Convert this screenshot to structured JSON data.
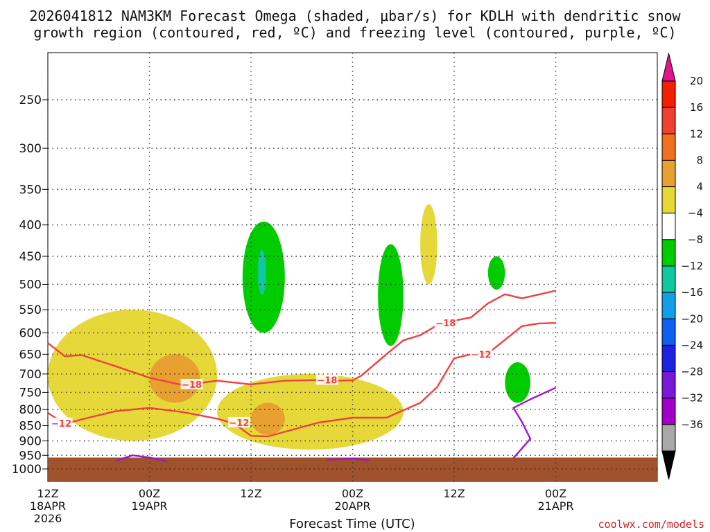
{
  "chart_data": {
    "type": "time-height cross section",
    "title_line1": "2026041812 NAM3KM Forecast Omega (shaded, μbar/s) for KDLH with dendritic snow",
    "title_line2": "growth region (contoured, red, ºC) and freezing level (contoured, purple, ºC)",
    "xlabel": "Forecast Time (UTC)",
    "credit": "coolwx.com/models",
    "x_hours_range": [
      0,
      36
    ],
    "x_ticks": [
      {
        "hour": 0,
        "line1": "12Z",
        "line2": "18APR",
        "line3": "2026"
      },
      {
        "hour": 6,
        "line1": "00Z",
        "line2": "19APR",
        "line3": ""
      },
      {
        "hour": 12,
        "line1": "12Z",
        "line2": "",
        "line3": ""
      },
      {
        "hour": 18,
        "line1": "00Z",
        "line2": "20APR",
        "line3": ""
      },
      {
        "hour": 24,
        "line1": "12Z",
        "line2": "",
        "line3": ""
      },
      {
        "hour": 30,
        "line1": "00Z",
        "line2": "21APR",
        "line3": ""
      }
    ],
    "y_ticks_hPa": [
      250,
      300,
      350,
      400,
      450,
      500,
      550,
      600,
      650,
      700,
      750,
      800,
      850,
      900,
      950,
      1000
    ],
    "y_range_hPa": [
      200,
      1000
    ],
    "colorbar": {
      "label_values": [
        "20",
        "16",
        "12",
        "8",
        "4",
        "−4",
        "−8",
        "−12",
        "−16",
        "−20",
        "−24",
        "−28",
        "−32",
        "−36"
      ],
      "colors": [
        "#f02000",
        "#f04030",
        "#f07020",
        "#e8a030",
        "#e6d838",
        "#ffffff",
        "#00cc00",
        "#10c8a0",
        "#10a0e8",
        "#1060f0",
        "#2020e0",
        "#7a18d8",
        "#a000c8",
        "#a8a8a8"
      ],
      "top_arrow_color": "#e0158a",
      "bottom_arrow_color": "#000000"
    },
    "shading_colors": {
      "weak_rising": "#e6d838",
      "moderate_rising": "#e8a030",
      "weak_sinking": "#00cc00",
      "moderate_sinking": "#10c8a0",
      "terrain": "#a0522d"
    },
    "omega_regions": [
      {
        "sign": "rising",
        "level": "4 to 8",
        "hour_range": [
          0,
          10
        ],
        "hPa_range": [
          550,
          900
        ]
      },
      {
        "sign": "rising",
        "level": "8 to 12",
        "hour_range": [
          6,
          9
        ],
        "hPa_range": [
          650,
          780
        ]
      },
      {
        "sign": "rising",
        "level": "4 to 8",
        "hour_range": [
          10,
          21
        ],
        "hPa_range": [
          700,
          930
        ]
      },
      {
        "sign": "rising",
        "level": "8 to 12",
        "hour_range": [
          12,
          14
        ],
        "hPa_range": [
          780,
          880
        ]
      },
      {
        "sign": "rising",
        "level": "4 to 8",
        "hour_range": [
          22,
          23
        ],
        "hPa_range": [
          370,
          500
        ]
      },
      {
        "sign": "sinking",
        "level": "-4 to -8",
        "hour_range": [
          11.5,
          14
        ],
        "hPa_range": [
          395,
          600
        ]
      },
      {
        "sign": "sinking",
        "level": "-8 to -12",
        "hour_range": [
          12.4,
          12.9
        ],
        "hPa_range": [
          440,
          520
        ]
      },
      {
        "sign": "sinking",
        "level": "-4 to -8",
        "hour_range": [
          19.5,
          21
        ],
        "hPa_range": [
          430,
          630
        ]
      },
      {
        "sign": "sinking",
        "level": "-4 to -8",
        "hour_range": [
          26,
          27
        ],
        "hPa_range": [
          450,
          510
        ]
      },
      {
        "sign": "sinking",
        "level": "-4 to -8",
        "hour_range": [
          27,
          28.5
        ],
        "hPa_range": [
          670,
          780
        ]
      }
    ],
    "dgz_contours": [
      {
        "label": "−18",
        "points": [
          [
            0,
            623
          ],
          [
            1,
            655
          ],
          [
            2,
            652
          ],
          [
            4,
            680
          ],
          [
            6,
            710
          ],
          [
            8,
            730
          ],
          [
            10,
            718
          ],
          [
            12,
            728
          ],
          [
            14,
            718
          ],
          [
            16,
            716
          ],
          [
            17,
            718
          ],
          [
            18,
            717
          ],
          [
            18.5,
            705
          ],
          [
            20,
            650
          ],
          [
            21,
            617
          ],
          [
            22,
            605
          ],
          [
            23,
            583
          ],
          [
            24,
            573
          ],
          [
            25,
            566
          ],
          [
            26,
            537
          ],
          [
            27,
            519
          ],
          [
            28,
            527
          ],
          [
            30,
            512
          ]
        ]
      },
      {
        "label": "−12",
        "points": [
          [
            0,
            810
          ],
          [
            1,
            845
          ],
          [
            2,
            830
          ],
          [
            4,
            805
          ],
          [
            6,
            795
          ],
          [
            8,
            808
          ],
          [
            10,
            828
          ],
          [
            11,
            843
          ],
          [
            12,
            883
          ],
          [
            13,
            885
          ],
          [
            16,
            840
          ],
          [
            18,
            825
          ],
          [
            20,
            825
          ],
          [
            22,
            780
          ],
          [
            23,
            735
          ],
          [
            24,
            660
          ],
          [
            25,
            650
          ],
          [
            26,
            648
          ],
          [
            28,
            585
          ],
          [
            29,
            579
          ],
          [
            30,
            578
          ]
        ]
      }
    ],
    "freezing_contours": [
      {
        "label": "0",
        "points": [
          [
            4,
            970
          ],
          [
            5,
            950
          ],
          [
            6,
            958
          ],
          [
            7,
            970
          ]
        ]
      },
      {
        "label": "0",
        "points": [
          [
            16.5,
            966
          ],
          [
            18,
            962
          ],
          [
            19,
            968
          ]
        ]
      },
      {
        "label": "0",
        "points": [
          [
            27.5,
            960
          ],
          [
            28.5,
            893
          ],
          [
            28,
            838
          ],
          [
            27.5,
            795
          ],
          [
            28.5,
            770
          ],
          [
            30,
            737
          ]
        ]
      }
    ]
  }
}
